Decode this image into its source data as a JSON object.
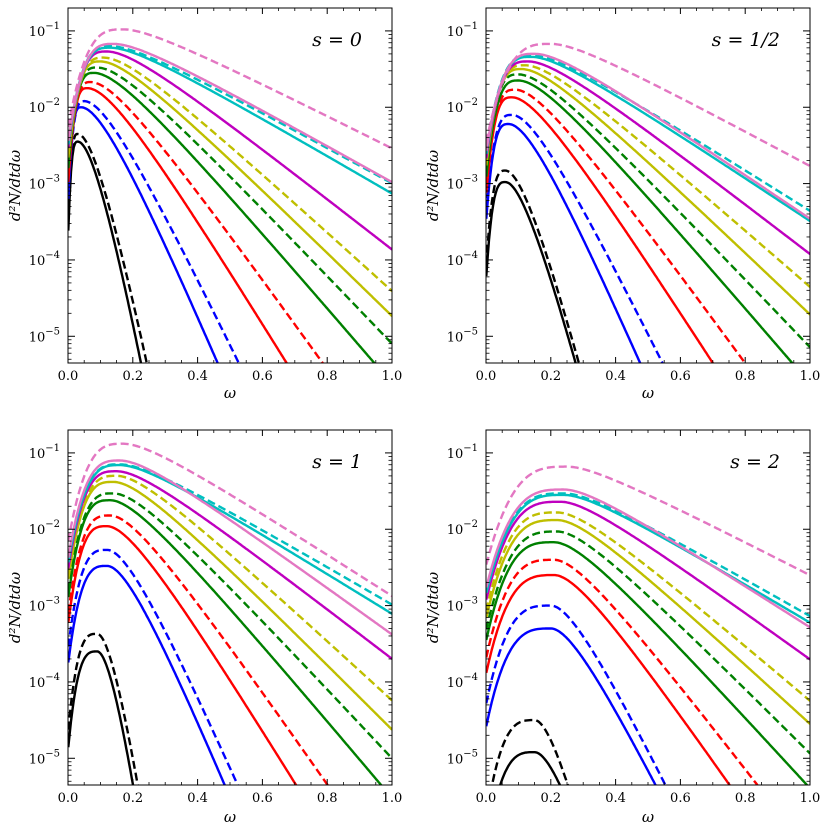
{
  "chart_data": [
    {
      "type": "line",
      "title": "s = 0",
      "xlabel": "ω",
      "ylabel": "d²N/dtdω",
      "xlim": [
        0,
        1
      ],
      "ylim_log10": [
        -5.35,
        -0.7
      ],
      "yscale": "log",
      "xticks": [
        "0.0",
        "0.2",
        "0.4",
        "0.6",
        "0.8",
        "1.0"
      ],
      "yticks": [
        {
          "mant": "10",
          "exp": "−1"
        },
        {
          "mant": "10",
          "exp": "−2"
        },
        {
          "mant": "10",
          "exp": "−3"
        },
        {
          "mant": "10",
          "exp": "−4"
        },
        {
          "mant": "10",
          "exp": "−5"
        }
      ],
      "series": [
        {
          "name": "black solid",
          "color": "#000000",
          "dash": false,
          "peak_x": 0.03,
          "peak_log10": -2.45,
          "slope_per_unit": -24.0
        },
        {
          "name": "black dashed",
          "color": "#000000",
          "dash": true,
          "peak_x": 0.03,
          "peak_log10": -2.35,
          "slope_per_unit": -22.0
        },
        {
          "name": "blue solid",
          "color": "#0000ff",
          "dash": false,
          "peak_x": 0.04,
          "peak_log10": -2.0,
          "slope_per_unit": -10.2
        },
        {
          "name": "blue dashed",
          "color": "#0000ff",
          "dash": true,
          "peak_x": 0.05,
          "peak_log10": -1.92,
          "slope_per_unit": -9.0
        },
        {
          "name": "red solid",
          "color": "#ff0000",
          "dash": false,
          "peak_x": 0.06,
          "peak_log10": -1.75,
          "slope_per_unit": -7.0
        },
        {
          "name": "red dashed",
          "color": "#ff0000",
          "dash": true,
          "peak_x": 0.07,
          "peak_log10": -1.67,
          "slope_per_unit": -6.0
        },
        {
          "name": "green solid",
          "color": "#008000",
          "dash": false,
          "peak_x": 0.08,
          "peak_log10": -1.55,
          "slope_per_unit": -5.0
        },
        {
          "name": "green dashed",
          "color": "#008000",
          "dash": true,
          "peak_x": 0.09,
          "peak_log10": -1.48,
          "slope_per_unit": -4.5
        },
        {
          "name": "yellow solid",
          "color": "#bfbf00",
          "dash": false,
          "peak_x": 0.1,
          "peak_log10": -1.4,
          "slope_per_unit": -4.2
        },
        {
          "name": "yellow dashed",
          "color": "#bfbf00",
          "dash": true,
          "peak_x": 0.11,
          "peak_log10": -1.35,
          "slope_per_unit": -3.9
        },
        {
          "name": "magenta solid",
          "color": "#bf00bf",
          "dash": false,
          "peak_x": 0.12,
          "peak_log10": -1.27,
          "slope_per_unit": -3.35
        },
        {
          "name": "cyan dashed",
          "color": "#00bfbf",
          "dash": true,
          "peak_x": 0.13,
          "peak_log10": -1.2,
          "slope_per_unit": -2.35
        },
        {
          "name": "cyan solid",
          "color": "#00bfbf",
          "dash": false,
          "peak_x": 0.13,
          "peak_log10": -1.22,
          "slope_per_unit": -2.5
        },
        {
          "name": "pink solid",
          "color": "#e377c2",
          "dash": false,
          "peak_x": 0.14,
          "peak_log10": -1.17,
          "slope_per_unit": -2.4
        },
        {
          "name": "pink dashed",
          "color": "#e377c2",
          "dash": true,
          "peak_x": 0.17,
          "peak_log10": -0.98,
          "slope_per_unit": -2.15
        }
      ]
    },
    {
      "type": "line",
      "title": "s = 1/2",
      "xlabel": "ω",
      "ylabel": "d²N/dtdω",
      "xlim": [
        0,
        1
      ],
      "ylim_log10": [
        -5.35,
        -0.7
      ],
      "yscale": "log",
      "xticks": [
        "0.0",
        "0.2",
        "0.4",
        "0.6",
        "0.8",
        "1.0"
      ],
      "yticks": [
        {
          "mant": "10",
          "exp": "−1"
        },
        {
          "mant": "10",
          "exp": "−2"
        },
        {
          "mant": "10",
          "exp": "−3"
        },
        {
          "mant": "10",
          "exp": "−4"
        },
        {
          "mant": "10",
          "exp": "−5"
        }
      ],
      "series": [
        {
          "name": "black solid",
          "color": "#000000",
          "dash": false,
          "peak_x": 0.06,
          "peak_log10": -2.98,
          "slope_per_unit": -17.0
        },
        {
          "name": "black dashed",
          "color": "#000000",
          "dash": true,
          "peak_x": 0.06,
          "peak_log10": -2.83,
          "slope_per_unit": -17.0
        },
        {
          "name": "blue solid",
          "color": "#0000ff",
          "dash": false,
          "peak_x": 0.07,
          "peak_log10": -2.22,
          "slope_per_unit": -10.0
        },
        {
          "name": "blue dashed",
          "color": "#0000ff",
          "dash": true,
          "peak_x": 0.08,
          "peak_log10": -2.1,
          "slope_per_unit": -8.8
        },
        {
          "name": "red solid",
          "color": "#ff0000",
          "dash": false,
          "peak_x": 0.08,
          "peak_log10": -1.87,
          "slope_per_unit": -6.7
        },
        {
          "name": "red dashed",
          "color": "#ff0000",
          "dash": true,
          "peak_x": 0.09,
          "peak_log10": -1.77,
          "slope_per_unit": -5.9
        },
        {
          "name": "green solid",
          "color": "#008000",
          "dash": false,
          "peak_x": 0.1,
          "peak_log10": -1.65,
          "slope_per_unit": -5.0
        },
        {
          "name": "green dashed",
          "color": "#008000",
          "dash": true,
          "peak_x": 0.1,
          "peak_log10": -1.57,
          "slope_per_unit": -4.5
        },
        {
          "name": "yellow solid",
          "color": "#bfbf00",
          "dash": false,
          "peak_x": 0.11,
          "peak_log10": -1.5,
          "slope_per_unit": -4.1
        },
        {
          "name": "yellow dashed",
          "color": "#bfbf00",
          "dash": true,
          "peak_x": 0.12,
          "peak_log10": -1.45,
          "slope_per_unit": -3.75
        },
        {
          "name": "magenta solid",
          "color": "#bf00bf",
          "dash": false,
          "peak_x": 0.13,
          "peak_log10": -1.4,
          "slope_per_unit": -3.3
        },
        {
          "name": "cyan dashed",
          "color": "#00bfbf",
          "dash": true,
          "peak_x": 0.14,
          "peak_log10": -1.32,
          "slope_per_unit": -2.7
        },
        {
          "name": "cyan solid",
          "color": "#00bfbf",
          "dash": false,
          "peak_x": 0.14,
          "peak_log10": -1.34,
          "slope_per_unit": -2.85
        },
        {
          "name": "pink solid",
          "color": "#e377c2",
          "dash": false,
          "peak_x": 0.15,
          "peak_log10": -1.3,
          "slope_per_unit": -2.9
        },
        {
          "name": "pink dashed",
          "color": "#e377c2",
          "dash": true,
          "peak_x": 0.2,
          "peak_log10": -1.17,
          "slope_per_unit": -2.3
        }
      ]
    },
    {
      "type": "line",
      "title": "s = 1",
      "xlabel": "ω",
      "ylabel": "d²N/dtdω",
      "xlim": [
        0,
        1
      ],
      "ylim_log10": [
        -5.35,
        -0.7
      ],
      "yscale": "log",
      "xticks": [
        "0.0",
        "0.2",
        "0.4",
        "0.6",
        "0.8",
        "1.0"
      ],
      "yticks": [
        {
          "mant": "10",
          "exp": "−1"
        },
        {
          "mant": "10",
          "exp": "−2"
        },
        {
          "mant": "10",
          "exp": "−3"
        },
        {
          "mant": "10",
          "exp": "−4"
        },
        {
          "mant": "10",
          "exp": "−5"
        }
      ],
      "series": [
        {
          "name": "black solid",
          "color": "#000000",
          "dash": false,
          "peak_x": 0.09,
          "peak_log10": -3.6,
          "slope_per_unit": -33.0
        },
        {
          "name": "black dashed",
          "color": "#000000",
          "dash": true,
          "peak_x": 0.09,
          "peak_log10": -3.37,
          "slope_per_unit": -31.0
        },
        {
          "name": "blue solid",
          "color": "#0000ff",
          "dash": false,
          "peak_x": 0.12,
          "peak_log10": -2.48,
          "slope_per_unit": -10.5
        },
        {
          "name": "blue dashed",
          "color": "#0000ff",
          "dash": true,
          "peak_x": 0.12,
          "peak_log10": -2.27,
          "slope_per_unit": -9.9
        },
        {
          "name": "red solid",
          "color": "#ff0000",
          "dash": false,
          "peak_x": 0.12,
          "peak_log10": -1.96,
          "slope_per_unit": -7.0
        },
        {
          "name": "red dashed",
          "color": "#ff0000",
          "dash": true,
          "peak_x": 0.13,
          "peak_log10": -1.82,
          "slope_per_unit": -6.2
        },
        {
          "name": "green solid",
          "color": "#008000",
          "dash": false,
          "peak_x": 0.13,
          "peak_log10": -1.62,
          "slope_per_unit": -5.1
        },
        {
          "name": "green dashed",
          "color": "#008000",
          "dash": true,
          "peak_x": 0.14,
          "peak_log10": -1.53,
          "slope_per_unit": -4.6
        },
        {
          "name": "yellow solid",
          "color": "#bfbf00",
          "dash": false,
          "peak_x": 0.14,
          "peak_log10": -1.38,
          "slope_per_unit": -4.3
        },
        {
          "name": "yellow dashed",
          "color": "#bfbf00",
          "dash": true,
          "peak_x": 0.15,
          "peak_log10": -1.3,
          "slope_per_unit": -3.95
        },
        {
          "name": "magenta solid",
          "color": "#bf00bf",
          "dash": false,
          "peak_x": 0.15,
          "peak_log10": -1.24,
          "slope_per_unit": -3.3
        },
        {
          "name": "cyan dashed",
          "color": "#00bfbf",
          "dash": true,
          "peak_x": 0.16,
          "peak_log10": -1.15,
          "slope_per_unit": -2.5
        },
        {
          "name": "cyan solid",
          "color": "#00bfbf",
          "dash": false,
          "peak_x": 0.16,
          "peak_log10": -1.16,
          "slope_per_unit": -2.65
        },
        {
          "name": "pink solid",
          "color": "#e377c2",
          "dash": false,
          "peak_x": 0.16,
          "peak_log10": -1.1,
          "slope_per_unit": -3.1
        },
        {
          "name": "pink dashed",
          "color": "#e377c2",
          "dash": true,
          "peak_x": 0.17,
          "peak_log10": -0.88,
          "slope_per_unit": -2.75
        }
      ]
    },
    {
      "type": "line",
      "title": "s = 2",
      "xlabel": "ω",
      "ylabel": "d²N/dtdω",
      "xlim": [
        0,
        1
      ],
      "ylim_log10": [
        -5.35,
        -0.7
      ],
      "yscale": "log",
      "xticks": [
        "0.0",
        "0.2",
        "0.4",
        "0.6",
        "0.8",
        "1.0"
      ],
      "yticks": [
        {
          "mant": "10",
          "exp": "−1"
        },
        {
          "mant": "10",
          "exp": "−2"
        },
        {
          "mant": "10",
          "exp": "−3"
        },
        {
          "mant": "10",
          "exp": "−4"
        },
        {
          "mant": "10",
          "exp": "−5"
        }
      ],
      "series": [
        {
          "name": "black solid",
          "color": "#000000",
          "dash": false,
          "peak_x": 0.15,
          "peak_log10": -4.92,
          "slope_per_unit": -14.0
        },
        {
          "name": "black dashed",
          "color": "#000000",
          "dash": true,
          "peak_x": 0.15,
          "peak_log10": -4.5,
          "slope_per_unit": -18.0
        },
        {
          "name": "blue solid",
          "color": "#0000ff",
          "dash": false,
          "peak_x": 0.2,
          "peak_log10": -3.3,
          "slope_per_unit": -8.7
        },
        {
          "name": "blue dashed",
          "color": "#0000ff",
          "dash": true,
          "peak_x": 0.2,
          "peak_log10": -3.0,
          "slope_per_unit": -8.9
        },
        {
          "name": "red solid",
          "color": "#ff0000",
          "dash": false,
          "peak_x": 0.21,
          "peak_log10": -2.6,
          "slope_per_unit": -6.2
        },
        {
          "name": "red dashed",
          "color": "#ff0000",
          "dash": true,
          "peak_x": 0.21,
          "peak_log10": -2.4,
          "slope_per_unit": -5.6
        },
        {
          "name": "green solid",
          "color": "#008000",
          "dash": false,
          "peak_x": 0.21,
          "peak_log10": -2.17,
          "slope_per_unit": -4.7
        },
        {
          "name": "green dashed",
          "color": "#008000",
          "dash": true,
          "peak_x": 0.22,
          "peak_log10": -2.03,
          "slope_per_unit": -4.3
        },
        {
          "name": "yellow solid",
          "color": "#bfbf00",
          "dash": false,
          "peak_x": 0.22,
          "peak_log10": -1.88,
          "slope_per_unit": -3.95
        },
        {
          "name": "yellow dashed",
          "color": "#bfbf00",
          "dash": true,
          "peak_x": 0.22,
          "peak_log10": -1.78,
          "slope_per_unit": -3.65
        },
        {
          "name": "magenta solid",
          "color": "#bf00bf",
          "dash": false,
          "peak_x": 0.23,
          "peak_log10": -1.64,
          "slope_per_unit": -3.1
        },
        {
          "name": "cyan dashed",
          "color": "#00bfbf",
          "dash": true,
          "peak_x": 0.24,
          "peak_log10": -1.53,
          "slope_per_unit": -2.45
        },
        {
          "name": "cyan solid",
          "color": "#00bfbf",
          "dash": false,
          "peak_x": 0.24,
          "peak_log10": -1.55,
          "slope_per_unit": -2.55
        },
        {
          "name": "pink solid",
          "color": "#e377c2",
          "dash": false,
          "peak_x": 0.24,
          "peak_log10": -1.48,
          "slope_per_unit": -2.75
        },
        {
          "name": "pink dashed",
          "color": "#e377c2",
          "dash": true,
          "peak_x": 0.25,
          "peak_log10": -1.18,
          "slope_per_unit": -2.2
        }
      ]
    }
  ]
}
